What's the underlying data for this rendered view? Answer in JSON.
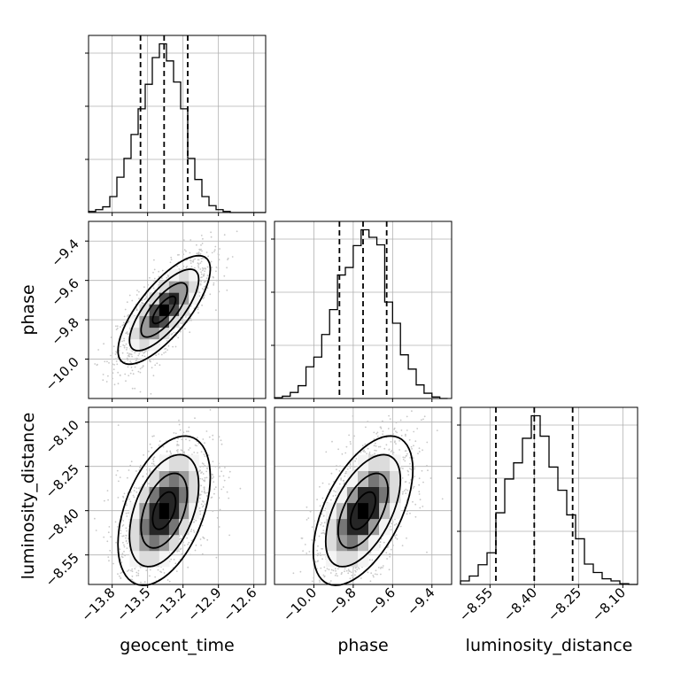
{
  "chart_data": {
    "type": "corner",
    "parameters": [
      "geocent_time",
      "phase",
      "luminosity_distance"
    ],
    "axis_labels": {
      "geocent_time": "geocent_time",
      "phase": "phase",
      "luminosity_distance": "luminosity_distance"
    },
    "ranges": {
      "geocent_time": [
        -14.0,
        -12.5
      ],
      "phase": [
        -10.2,
        -9.3
      ],
      "luminosity_distance": [
        -8.65,
        -8.05
      ]
    },
    "ticks": {
      "geocent_time": [
        -13.8,
        -13.5,
        -13.2,
        -12.9,
        -12.6
      ],
      "phase": [
        -10.0,
        -9.8,
        -9.6,
        -9.4
      ],
      "luminosity_distance": [
        -8.55,
        -8.4,
        -8.25,
        -8.1
      ]
    },
    "tick_labels": {
      "geocent_time": [
        "−13.8",
        "−13.5",
        "−13.2",
        "−12.9",
        "−12.6"
      ],
      "phase": [
        "−10.0",
        "−9.8",
        "−9.6",
        "−9.4"
      ],
      "luminosity_distance": [
        "−8.55",
        "−8.40",
        "−8.25",
        "−8.10"
      ]
    },
    "quantiles": {
      "geocent_time": [
        -13.56,
        -13.36,
        -13.16
      ],
      "phase": [
        -9.87,
        -9.75,
        -9.63
      ],
      "luminosity_distance": [
        -8.53,
        -8.4,
        -8.27
      ]
    },
    "marginals": {
      "geocent_time": {
        "edges": [
          -14.0,
          -13.94,
          -13.88,
          -13.82,
          -13.76,
          -13.7,
          -13.64,
          -13.58,
          -13.52,
          -13.46,
          -13.4,
          -13.34,
          -13.28,
          -13.22,
          -13.16,
          -13.1,
          -13.04,
          -12.98,
          -12.92,
          -12.86,
          -12.8,
          -12.74,
          -12.68,
          -12.62,
          -12.56,
          -12.5
        ],
        "counts": [
          2,
          5,
          10,
          28,
          62,
          95,
          137,
          182,
          225,
          272,
          296,
          266,
          229,
          182,
          95,
          58,
          28,
          12,
          5,
          2,
          0,
          0,
          0,
          0,
          0
        ]
      },
      "phase": {
        "edges": [
          -10.2,
          -10.16,
          -10.12,
          -10.08,
          -10.04,
          -10.0,
          -9.96,
          -9.92,
          -9.88,
          -9.84,
          -9.8,
          -9.76,
          -9.72,
          -9.68,
          -9.64,
          -9.6,
          -9.56,
          -9.52,
          -9.48,
          -9.44,
          -9.4,
          -9.36,
          -9.32
        ],
        "counts": [
          1,
          3,
          8,
          17,
          42,
          55,
          85,
          118,
          164,
          174,
          203,
          224,
          214,
          204,
          128,
          100,
          58,
          39,
          18,
          7,
          2,
          0
        ]
      },
      "luminosity_distance": {
        "edges": [
          -8.65,
          -8.62,
          -8.59,
          -8.56,
          -8.53,
          -8.5,
          -8.47,
          -8.44,
          -8.41,
          -8.38,
          -8.35,
          -8.32,
          -8.29,
          -8.26,
          -8.23,
          -8.2,
          -8.17,
          -8.14,
          -8.11,
          -8.08,
          -8.05
        ],
        "counts": [
          5,
          12,
          28,
          45,
          102,
          150,
          173,
          208,
          240,
          211,
          167,
          134,
          99,
          65,
          29,
          17,
          8,
          5,
          1,
          0
        ]
      }
    },
    "joint": [
      {
        "x": "geocent_time",
        "y": "phase",
        "center": [
          -13.36,
          -9.75
        ],
        "sd": [
          0.17,
          0.12
        ],
        "rho": 0.75,
        "levels_sigma": [
          0.5,
          1.0,
          1.5,
          2.0
        ]
      },
      {
        "x": "geocent_time",
        "y": "luminosity_distance",
        "center": [
          -13.36,
          -8.4
        ],
        "sd": [
          0.17,
          0.11
        ],
        "rho": 0.45,
        "levels_sigma": [
          0.5,
          1.0,
          1.5,
          2.0
        ]
      },
      {
        "x": "phase",
        "y": "luminosity_distance",
        "center": [
          -9.75,
          -8.4
        ],
        "sd": [
          0.11,
          0.11
        ],
        "rho": 0.55,
        "levels_sigma": [
          0.5,
          1.0,
          1.5,
          2.0
        ]
      }
    ],
    "grid": true,
    "colors": {
      "line": "#000000",
      "grid": "#b0b0b0",
      "scatter": "#c8c8c8",
      "density": [
        "#f4f4f4",
        "#dcdcdc",
        "#bdbdbd",
        "#9a9a9a",
        "#767676",
        "#4f4f4f",
        "#262626",
        "#000000"
      ]
    }
  }
}
